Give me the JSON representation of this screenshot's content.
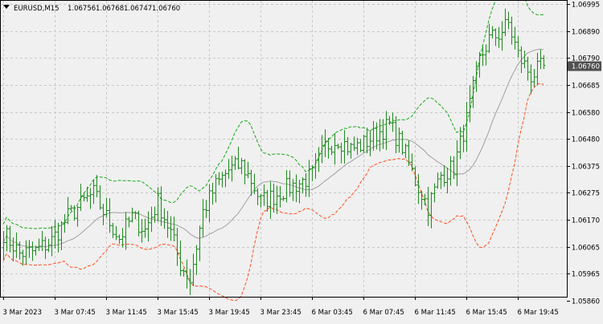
{
  "header": {
    "symbol": "EURUSD,M15",
    "open": "1.06756",
    "high": "1.06768",
    "low": "1.06747",
    "close": "1.06760"
  },
  "colors": {
    "background": "#f0f0f0",
    "grid": "#c8c8c8",
    "candle": "#1e8a1e",
    "middle_band": "#a0a0a0",
    "upper_band": "#18a818",
    "lower_band": "#ff5020",
    "price_tag_bg": "#505050",
    "price_tag_fg": "#ffffff"
  },
  "chart_data": {
    "type": "ohlc-bar",
    "symbol": "EURUSD",
    "timeframe": "M15",
    "ylim": [
      1.0586,
      1.06995
    ],
    "y_ticks": [
      "1.06995",
      "1.06890",
      "1.06790",
      "1.06685",
      "1.06580",
      "1.06480",
      "1.06375",
      "1.06275",
      "1.06170",
      "1.06065",
      "1.05965",
      "1.05860"
    ],
    "x_ticks": [
      "3 Mar 2023",
      "3 Mar 07:45",
      "3 Mar 11:45",
      "3 Mar 15:45",
      "3 Mar 19:45",
      "3 Mar 23:45",
      "6 Mar 03:45",
      "6 Mar 07:45",
      "6 Mar 11:45",
      "6 Mar 15:45",
      "6 Mar 19:45"
    ],
    "current_price": "1.06760",
    "grid": true,
    "bar_count": 169,
    "close_anchors": [
      [
        0,
        1.0612
      ],
      [
        5,
        1.0604
      ],
      [
        10,
        1.0605
      ],
      [
        15,
        1.0609
      ],
      [
        20,
        1.0618
      ],
      [
        25,
        1.0624
      ],
      [
        28,
        1.0627
      ],
      [
        32,
        1.0618
      ],
      [
        36,
        1.061
      ],
      [
        40,
        1.0618
      ],
      [
        44,
        1.0613
      ],
      [
        48,
        1.0624
      ],
      [
        52,
        1.0612
      ],
      [
        55,
        1.06
      ],
      [
        58,
        1.0594
      ],
      [
        62,
        1.062
      ],
      [
        66,
        1.063
      ],
      [
        70,
        1.0636
      ],
      [
        74,
        1.0638
      ],
      [
        77,
        1.0632
      ],
      [
        80,
        1.0624
      ],
      [
        84,
        1.0626
      ],
      [
        88,
        1.0629
      ],
      [
        92,
        1.0631
      ],
      [
        96,
        1.0634
      ],
      [
        100,
        1.0645
      ],
      [
        104,
        1.0648
      ],
      [
        108,
        1.0644
      ],
      [
        112,
        1.0646
      ],
      [
        116,
        1.065
      ],
      [
        120,
        1.0653
      ],
      [
        124,
        1.0645
      ],
      [
        128,
        1.0632
      ],
      [
        132,
        1.0622
      ],
      [
        136,
        1.0634
      ],
      [
        140,
        1.0637
      ],
      [
        144,
        1.0655
      ],
      [
        148,
        1.0678
      ],
      [
        151,
        1.0686
      ],
      [
        154,
        1.0688
      ],
      [
        157,
        1.0692
      ],
      [
        160,
        1.068
      ],
      [
        164,
        1.0672
      ],
      [
        168,
        1.0676
      ]
    ],
    "series": [
      {
        "name": "Bollinger middle",
        "line": "grey"
      },
      {
        "name": "Bollinger upper",
        "line": "green dashed"
      },
      {
        "name": "Bollinger lower",
        "line": "red dashed"
      }
    ]
  }
}
